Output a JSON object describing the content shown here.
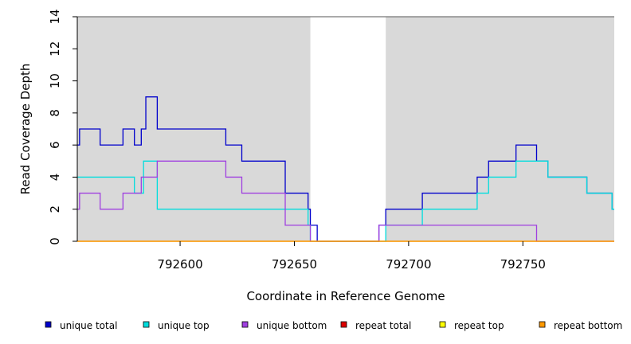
{
  "chart_data": {
    "type": "line",
    "step": true,
    "xlabel": "Coordinate in Reference Genome",
    "ylabel": "Read Coverage Depth",
    "xlim": [
      792555,
      792790
    ],
    "ylim": [
      0,
      14
    ],
    "xticks": [
      792600,
      792650,
      792700,
      792750
    ],
    "yticks": [
      0,
      2,
      4,
      6,
      8,
      10,
      12,
      14
    ],
    "shaded_regions": [
      [
        792555,
        792657
      ],
      [
        792690,
        792790
      ]
    ],
    "shade_color": "#d9d9d9",
    "legend_position": "bottom",
    "series": [
      {
        "name": "unique total",
        "color": "#0000cc",
        "points": [
          [
            792555,
            6
          ],
          [
            792556,
            7
          ],
          [
            792565,
            6
          ],
          [
            792575,
            7
          ],
          [
            792580,
            6
          ],
          [
            792583,
            7
          ],
          [
            792585,
            9
          ],
          [
            792590,
            7
          ],
          [
            792620,
            6
          ],
          [
            792627,
            5
          ],
          [
            792646,
            3
          ],
          [
            792656,
            2
          ],
          [
            792657,
            1
          ],
          [
            792660,
            0
          ],
          [
            792687,
            1
          ],
          [
            792690,
            2
          ],
          [
            792706,
            3
          ],
          [
            792730,
            4
          ],
          [
            792735,
            5
          ],
          [
            792747,
            6
          ],
          [
            792756,
            5
          ],
          [
            792761,
            4
          ],
          [
            792778,
            3
          ],
          [
            792789,
            2
          ],
          [
            792790,
            2
          ]
        ]
      },
      {
        "name": "unique top",
        "color": "#00dddd",
        "points": [
          [
            792555,
            4
          ],
          [
            792580,
            3
          ],
          [
            792584,
            5
          ],
          [
            792590,
            2
          ],
          [
            792656,
            1
          ],
          [
            792657,
            0
          ],
          [
            792690,
            1
          ],
          [
            792706,
            2
          ],
          [
            792730,
            3
          ],
          [
            792735,
            4
          ],
          [
            792747,
            5
          ],
          [
            792756,
            5
          ],
          [
            792761,
            4
          ],
          [
            792778,
            3
          ],
          [
            792789,
            2
          ],
          [
            792790,
            2
          ]
        ]
      },
      {
        "name": "unique bottom",
        "color": "#a040e0",
        "points": [
          [
            792555,
            2
          ],
          [
            792556,
            3
          ],
          [
            792565,
            2
          ],
          [
            792575,
            3
          ],
          [
            792583,
            4
          ],
          [
            792590,
            5
          ],
          [
            792620,
            4
          ],
          [
            792627,
            3
          ],
          [
            792646,
            1
          ],
          [
            792657,
            0
          ],
          [
            792687,
            1
          ],
          [
            792756,
            0
          ],
          [
            792790,
            0
          ]
        ]
      },
      {
        "name": "repeat total",
        "color": "#dd0000",
        "points": [
          [
            792555,
            0
          ],
          [
            792790,
            0
          ]
        ]
      },
      {
        "name": "repeat top",
        "color": "#ffff00",
        "points": [
          [
            792555,
            0
          ],
          [
            792790,
            0
          ]
        ]
      },
      {
        "name": "repeat bottom",
        "color": "#ff9900",
        "points": [
          [
            792555,
            0
          ],
          [
            792790,
            0
          ]
        ]
      }
    ]
  }
}
